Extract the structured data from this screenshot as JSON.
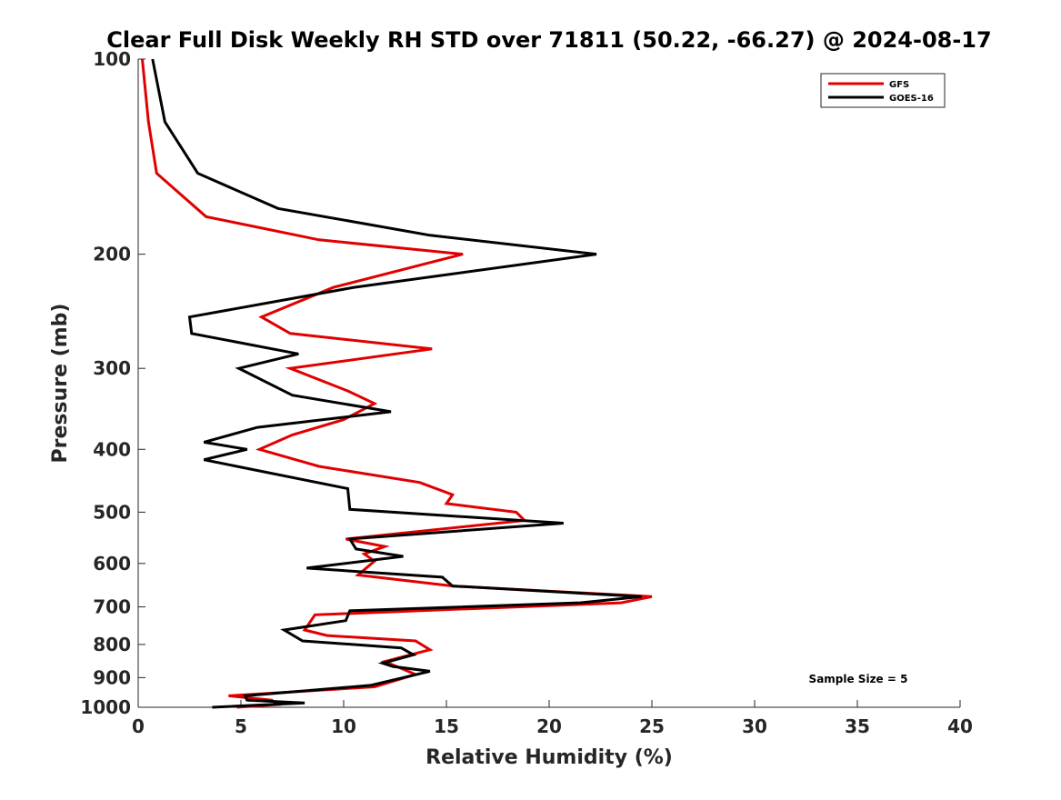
{
  "chart_data": {
    "type": "line",
    "title": "Clear Full Disk Weekly RH STD over 71811 (50.22, -66.27) @ 2024-08-17",
    "xlabel": "Relative Humidity (%)",
    "ylabel": "Pressure (mb)",
    "xlim": [
      0,
      40
    ],
    "ylim": [
      100,
      1000
    ],
    "yscale": "log",
    "y_reversed": true,
    "xticks": [
      "0",
      "5",
      "10",
      "15",
      "20",
      "25",
      "30",
      "35",
      "40"
    ],
    "yticks": [
      "100",
      "200",
      "300",
      "400",
      "500",
      "600",
      "700",
      "800",
      "900",
      "1000"
    ],
    "grid": false,
    "legend_position": "top-right",
    "annotation": "Sample Size = 5",
    "series": [
      {
        "name": "GFS",
        "color": "#e00000",
        "points": [
          [
            0.2,
            100
          ],
          [
            0.5,
            125
          ],
          [
            0.9,
            150
          ],
          [
            3.3,
            175
          ],
          [
            8.8,
            190
          ],
          [
            15.8,
            200
          ],
          [
            9.5,
            225
          ],
          [
            6.0,
            250
          ],
          [
            7.4,
            265
          ],
          [
            14.3,
            280
          ],
          [
            7.4,
            300
          ],
          [
            10.2,
            325
          ],
          [
            11.5,
            340
          ],
          [
            10.0,
            360
          ],
          [
            7.5,
            380
          ],
          [
            5.9,
            400
          ],
          [
            8.8,
            425
          ],
          [
            13.7,
            450
          ],
          [
            15.3,
            470
          ],
          [
            15.0,
            485
          ],
          [
            18.4,
            500
          ],
          [
            18.8,
            515
          ],
          [
            10.1,
            550
          ],
          [
            12.0,
            565
          ],
          [
            11.0,
            580
          ],
          [
            11.5,
            595
          ],
          [
            10.7,
            625
          ],
          [
            15.3,
            650
          ],
          [
            25.0,
            675
          ],
          [
            23.5,
            690
          ],
          [
            8.6,
            720
          ],
          [
            8.1,
            760
          ],
          [
            9.2,
            775
          ],
          [
            13.5,
            790
          ],
          [
            14.2,
            815
          ],
          [
            12.0,
            850
          ],
          [
            13.5,
            890
          ],
          [
            11.5,
            930
          ],
          [
            4.4,
            960
          ],
          [
            6.5,
            975
          ],
          [
            6.8,
            990
          ],
          [
            4.8,
            1000
          ]
        ]
      },
      {
        "name": "GOES-16",
        "color": "#000000",
        "points": [
          [
            0.7,
            100
          ],
          [
            1.3,
            125
          ],
          [
            2.9,
            150
          ],
          [
            6.8,
            170
          ],
          [
            14.2,
            187
          ],
          [
            22.3,
            200
          ],
          [
            10.5,
            225
          ],
          [
            2.5,
            250
          ],
          [
            2.6,
            265
          ],
          [
            7.8,
            285
          ],
          [
            4.9,
            300
          ],
          [
            7.5,
            330
          ],
          [
            12.3,
            350
          ],
          [
            5.8,
            370
          ],
          [
            3.2,
            390
          ],
          [
            5.3,
            400
          ],
          [
            3.2,
            415
          ],
          [
            10.2,
            460
          ],
          [
            10.3,
            495
          ],
          [
            20.7,
            520
          ],
          [
            10.3,
            550
          ],
          [
            10.6,
            570
          ],
          [
            12.9,
            585
          ],
          [
            8.2,
            610
          ],
          [
            14.8,
            630
          ],
          [
            15.3,
            650
          ],
          [
            24.5,
            675
          ],
          [
            21.5,
            690
          ],
          [
            10.3,
            710
          ],
          [
            10.1,
            735
          ],
          [
            7.1,
            760
          ],
          [
            8.0,
            790
          ],
          [
            12.8,
            810
          ],
          [
            13.4,
            830
          ],
          [
            11.9,
            855
          ],
          [
            12.4,
            865
          ],
          [
            14.2,
            880
          ],
          [
            11.3,
            925
          ],
          [
            5.2,
            960
          ],
          [
            5.3,
            975
          ],
          [
            8.1,
            985
          ],
          [
            3.6,
            1000
          ]
        ]
      }
    ]
  }
}
